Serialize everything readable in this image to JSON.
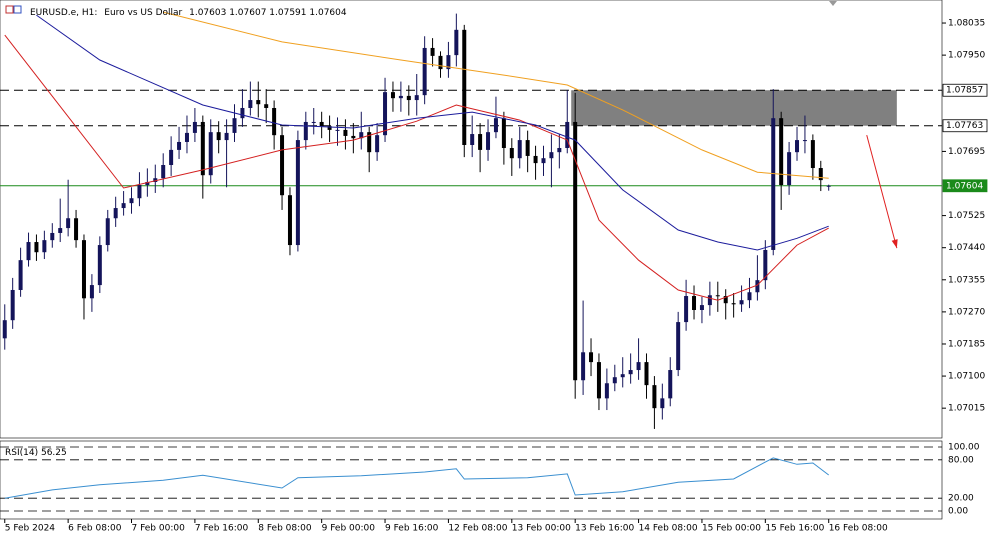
{
  "chart_data": {
    "type": "candlestick",
    "symbol": "EURUSD.e, H1:",
    "description": "Euro vs US Dollar",
    "up_color": "#14145a",
    "down_color": "#000000",
    "xlim": [
      -0.6,
      118.3
    ],
    "xticks": [
      {
        "value": 0,
        "label": "5 Feb 2024"
      },
      {
        "value": 8,
        "label": "6 Feb 08:00"
      },
      {
        "value": 16,
        "label": "7 Feb 00:00"
      },
      {
        "value": 24,
        "label": "7 Feb 16:00"
      },
      {
        "value": 32,
        "label": "8 Feb 08:00"
      },
      {
        "value": 40,
        "label": "9 Feb 00:00"
      },
      {
        "value": 48,
        "label": "9 Feb 16:00"
      },
      {
        "value": 56,
        "label": "12 Feb 08:00"
      },
      {
        "value": 64,
        "label": "13 Feb 00:00"
      },
      {
        "value": 72,
        "label": "13 Feb 16:00"
      },
      {
        "value": 80,
        "label": "14 Feb 08:00"
      },
      {
        "value": 88,
        "label": "15 Feb 00:00"
      },
      {
        "value": 96,
        "label": "15 Feb 16:00"
      },
      {
        "value": 104,
        "label": "16 Feb 08:00"
      }
    ],
    "ylim": [
      1.06936,
      1.08096
    ],
    "yticks": [
      1.08035,
      {
        "value": 1.0795,
        "label": "1.07950"
      },
      1.07695,
      1.07525,
      {
        "value": 1.0744,
        "label": "1.07440"
      },
      1.07355,
      {
        "value": 1.0727,
        "label": "1.07270"
      },
      1.07185,
      {
        "value": 1.071,
        "label": "1.07100"
      },
      1.07015
    ],
    "open": [
      1.072,
      1.07248,
      1.07328,
      1.07407,
      1.07455,
      1.07428,
      1.0746,
      1.07479,
      1.07492,
      1.07518,
      1.0746,
      1.07306,
      1.07341,
      1.07447,
      1.07518,
      1.07545,
      1.07558,
      1.07571,
      1.07606,
      1.07614,
      1.07624,
      1.07659,
      1.07699,
      1.0772,
      1.07744,
      1.07773,
      1.07632,
      1.07746,
      1.07725,
      1.07744,
      1.07783,
      1.0781,
      1.07831,
      1.0782,
      1.0781,
      1.07738,
      1.07579,
      1.07447,
      1.07725,
      1.07773,
      1.07773,
      1.07762,
      1.07752,
      1.07752,
      1.07736,
      1.0773,
      1.07746,
      1.07693,
      1.07738,
      1.07852,
      1.07836,
      1.07842,
      1.07831,
      1.07844,
      1.07969,
      1.07948,
      1.07913,
      1.0795,
      1.08017,
      1.07712,
      1.07741,
      1.07699,
      1.07746,
      1.07783,
      1.07704,
      1.07677,
      1.07725,
      1.07683,
      1.07664,
      1.07677,
      1.07693,
      1.07704,
      1.07773,
      1.07089,
      1.07163,
      1.07137,
      1.07041,
      1.07081,
      1.07097,
      1.07105,
      1.07116,
      1.07137,
      1.07076,
      1.07015,
      1.07041,
      1.07116,
      1.07243,
      1.07312,
      1.07275,
      1.07288,
      1.07314,
      1.07312,
      1.07293,
      1.0729,
      1.07301,
      1.07322,
      1.07354,
      1.07434,
      1.07783,
      1.07606,
      1.07693,
      1.07725,
      1.07725,
      1.07651,
      1.07603
    ],
    "high": [
      1.0729,
      1.0736,
      1.0744,
      1.0748,
      1.07475,
      1.07485,
      1.07505,
      1.0757,
      1.0762,
      1.0754,
      1.07475,
      1.0737,
      1.0747,
      1.0754,
      1.07575,
      1.0759,
      1.076,
      1.0764,
      1.0765,
      1.0766,
      1.0769,
      1.07735,
      1.0776,
      1.0779,
      1.0781,
      1.0779,
      1.0778,
      1.07775,
      1.0778,
      1.0782,
      1.0786,
      1.0788,
      1.0788,
      1.0786,
      1.0783,
      1.0776,
      1.076,
      1.0775,
      1.078,
      1.0781,
      1.078,
      1.0779,
      1.07785,
      1.0778,
      1.0777,
      1.078,
      1.0776,
      1.0777,
      1.0789,
      1.0788,
      1.0788,
      1.0787,
      1.079,
      1.08,
      1.07995,
      1.0796,
      1.07985,
      1.0806,
      1.0803,
      1.0779,
      1.0777,
      1.0778,
      1.0784,
      1.078,
      1.0773,
      1.0776,
      1.0775,
      1.0771,
      1.0771,
      1.0774,
      1.0774,
      1.07857,
      1.0785,
      1.073,
      1.072,
      1.0716,
      1.0712,
      1.0713,
      1.0715,
      1.0716,
      1.072,
      1.0716,
      1.071,
      1.0708,
      1.0715,
      1.0727,
      1.07355,
      1.0734,
      1.0731,
      1.0735,
      1.0735,
      1.0733,
      1.0732,
      1.0734,
      1.0736,
      1.0742,
      1.0746,
      1.0786,
      1.078,
      1.0772,
      1.0776,
      1.0779,
      1.0774,
      1.0767,
      1.07607
    ],
    "low": [
      1.0717,
      1.07225,
      1.0731,
      1.0739,
      1.07405,
      1.0741,
      1.0744,
      1.07455,
      1.0747,
      1.0744,
      1.0725,
      1.0727,
      1.0732,
      1.0743,
      1.07495,
      1.07525,
      1.0753,
      1.0755,
      1.07575,
      1.07585,
      1.076,
      1.0763,
      1.07675,
      1.0769,
      1.0772,
      1.0757,
      1.0761,
      1.0769,
      1.076,
      1.0772,
      1.0776,
      1.0779,
      1.07785,
      1.0777,
      1.077,
      1.0754,
      1.0742,
      1.0743,
      1.077,
      1.0774,
      1.0773,
      1.0772,
      1.0771,
      1.077,
      1.0769,
      1.077,
      1.0764,
      1.0767,
      1.0772,
      1.078,
      1.078,
      1.0779,
      1.0779,
      1.0782,
      1.0792,
      1.0789,
      1.0789,
      1.0792,
      1.0768,
      1.0768,
      1.0764,
      1.0767,
      1.0773,
      1.0766,
      1.0763,
      1.0765,
      1.0764,
      1.0762,
      1.0763,
      1.076,
      1.0765,
      1.0769,
      1.0704,
      1.0705,
      1.071,
      1.0701,
      1.0701,
      1.0706,
      1.0707,
      1.0708,
      1.0709,
      1.0704,
      1.0696,
      1.06985,
      1.0702,
      1.071,
      1.0722,
      1.0725,
      1.0724,
      1.0726,
      1.0727,
      1.0725,
      1.07255,
      1.0727,
      1.0728,
      1.073,
      1.0733,
      1.0742,
      1.0754,
      1.0758,
      1.0767,
      1.0769,
      1.0762,
      1.0759,
      1.07591
    ],
    "close": [
      1.07248,
      1.07328,
      1.07407,
      1.07455,
      1.07428,
      1.0746,
      1.07479,
      1.07492,
      1.07518,
      1.0746,
      1.07306,
      1.07341,
      1.07447,
      1.07518,
      1.07545,
      1.07558,
      1.07571,
      1.07606,
      1.07614,
      1.07624,
      1.07659,
      1.07699,
      1.0772,
      1.07744,
      1.07773,
      1.07632,
      1.07746,
      1.07725,
      1.07744,
      1.07783,
      1.0781,
      1.07831,
      1.0782,
      1.0781,
      1.07738,
      1.07579,
      1.07447,
      1.07725,
      1.07773,
      1.07773,
      1.07762,
      1.07752,
      1.07752,
      1.07736,
      1.0773,
      1.07746,
      1.07693,
      1.07738,
      1.07852,
      1.07836,
      1.07842,
      1.07831,
      1.07844,
      1.07969,
      1.07948,
      1.07913,
      1.0795,
      1.08017,
      1.07712,
      1.07741,
      1.07699,
      1.07746,
      1.07783,
      1.07704,
      1.07677,
      1.07725,
      1.07683,
      1.07664,
      1.07677,
      1.07693,
      1.07704,
      1.07773,
      1.07089,
      1.07163,
      1.07137,
      1.07041,
      1.07081,
      1.07097,
      1.07105,
      1.07116,
      1.07137,
      1.07076,
      1.07015,
      1.07041,
      1.07116,
      1.07243,
      1.07312,
      1.07275,
      1.07288,
      1.07314,
      1.07312,
      1.07293,
      1.0729,
      1.07301,
      1.07322,
      1.07354,
      1.07434,
      1.07783,
      1.07606,
      1.07693,
      1.07725,
      1.07725,
      1.07651,
      1.07619,
      1.07604
    ],
    "overlays": [
      {
        "color": "#d42020",
        "x": [
          0,
          15,
          25,
          35,
          44,
          52,
          57,
          65,
          71,
          75,
          80,
          85,
          90,
          95,
          100,
          104
        ],
        "values": [
          1.08003,
          1.07598,
          1.07646,
          1.07699,
          1.07725,
          1.07775,
          1.07818,
          1.07778,
          1.07725,
          1.07513,
          1.07407,
          1.07328,
          1.07301,
          1.07341,
          1.07447,
          1.07492
        ]
      },
      {
        "color": "#1c1c9c",
        "x": [
          4,
          12,
          25,
          35,
          44,
          52,
          59,
          67,
          72,
          78,
          85,
          90,
          95,
          100,
          104
        ],
        "values": [
          1.08056,
          1.07937,
          1.07818,
          1.07765,
          1.07757,
          1.07783,
          1.07799,
          1.07765,
          1.07725,
          1.07593,
          1.07487,
          1.07455,
          1.07434,
          1.07465,
          1.07497
        ]
      },
      {
        "color": "#f0a020",
        "x": [
          20,
          35,
          50,
          63,
          71,
          78,
          88,
          95,
          104
        ],
        "values": [
          1.08064,
          1.07985,
          1.07937,
          1.07897,
          1.07871,
          1.07805,
          1.07699,
          1.0764,
          1.07624
        ]
      }
    ],
    "levels": [
      {
        "value": 1.07857,
        "color": "#000000",
        "style": "dashed"
      },
      {
        "value": 1.07763,
        "color": "#000000",
        "style": "dashed"
      },
      {
        "value": 1.07604,
        "color": "#1a8a1a",
        "style": "solid"
      }
    ],
    "zone": {
      "x": [
        71.5,
        112.6
      ],
      "y": [
        1.07857,
        1.07763
      ],
      "color": "#808080"
    },
    "arrow": {
      "x": [
        108.8,
        112.6
      ],
      "y": [
        1.07738,
        1.07439
      ],
      "color": "#e02020"
    },
    "rsi": {
      "name": "RSI(14)",
      "color": "#3a8fd0",
      "ylim": [
        0,
        100
      ],
      "yticks": [
        {
          "value": 100,
          "label": "100.00"
        },
        {
          "value": 80,
          "label": "80.00"
        },
        {
          "value": 20,
          "label": "20.00"
        },
        {
          "value": 0,
          "label": "0.00"
        }
      ],
      "x": [
        0,
        6,
        12,
        20,
        25,
        35,
        37,
        45,
        53,
        57,
        58,
        66,
        71,
        72,
        78,
        85,
        92,
        97,
        100,
        102,
        104
      ],
      "values": [
        20,
        33,
        41,
        48,
        56,
        36,
        52,
        55,
        61,
        66,
        50,
        52,
        58,
        25,
        30,
        45,
        50,
        83,
        73,
        75,
        56.25
      ]
    }
  }
}
